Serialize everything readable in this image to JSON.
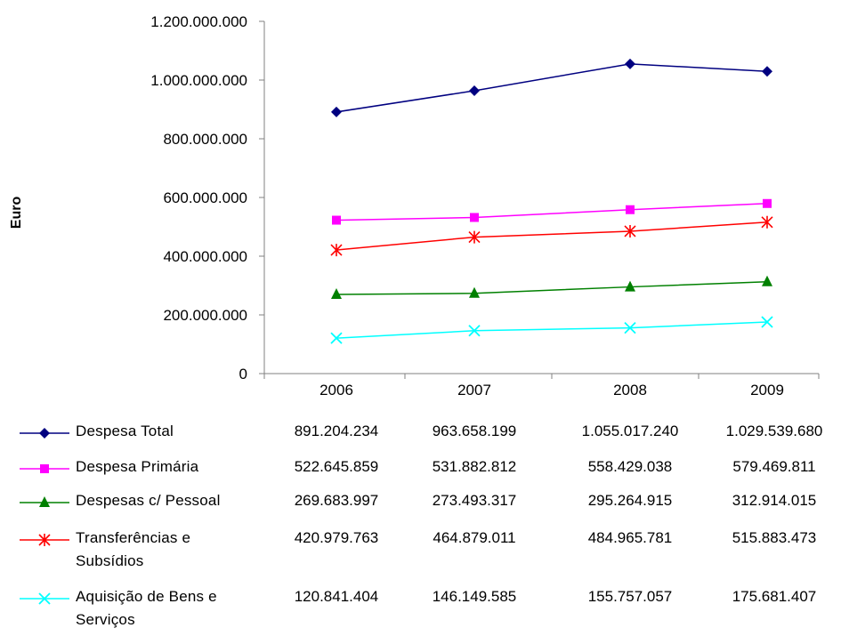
{
  "chart_data": {
    "type": "line",
    "categories": [
      "2006",
      "2007",
      "2008",
      "2009"
    ],
    "ylabel": "Euro",
    "ylim": [
      0,
      1200000000
    ],
    "yticks": [
      0,
      200000000,
      400000000,
      600000000,
      800000000,
      1000000000,
      1200000000
    ],
    "ytick_labels": [
      "0",
      "200.000.000",
      "400.000.000",
      "600.000.000",
      "800.000.000",
      "1.000.000.000",
      "1.200.000.000"
    ],
    "grid": false,
    "legend": "data-table-below",
    "series": [
      {
        "name": "Despesa Total",
        "marker": "diamond",
        "color": "#000080",
        "values": [
          891204234,
          963658199,
          1055017240,
          1029539680
        ],
        "labels": [
          "891.204.234",
          "963.658.199",
          "1.055.017.240",
          "1.029.539.680"
        ]
      },
      {
        "name": "Despesa Primária",
        "marker": "square",
        "color": "#ff00ff",
        "values": [
          522645859,
          531882812,
          558429038,
          579469811
        ],
        "labels": [
          "522.645.859",
          "531.882.812",
          "558.429.038",
          "579.469.811"
        ]
      },
      {
        "name": "Despesas c/ Pessoal",
        "marker": "triangle",
        "color": "#008000",
        "values": [
          269683997,
          273493317,
          295264915,
          312914015
        ],
        "labels": [
          "269.683.997",
          "273.493.317",
          "295.264.915",
          "312.914.015"
        ]
      },
      {
        "name": "Transferências e Subsídios",
        "marker": "star",
        "color": "#ff0000",
        "values": [
          420979763,
          464879011,
          484965781,
          515883473
        ],
        "labels": [
          "420.979.763",
          "464.879.011",
          "484.965.781",
          "515.883.473"
        ]
      },
      {
        "name": "Aquisição de Bens e Serviços",
        "marker": "x",
        "color": "#00ffff",
        "values": [
          120841404,
          146149585,
          155757057,
          175681407
        ],
        "labels": [
          "120.841.404",
          "146.149.585",
          "155.757.057",
          "175.681.407"
        ]
      }
    ]
  }
}
